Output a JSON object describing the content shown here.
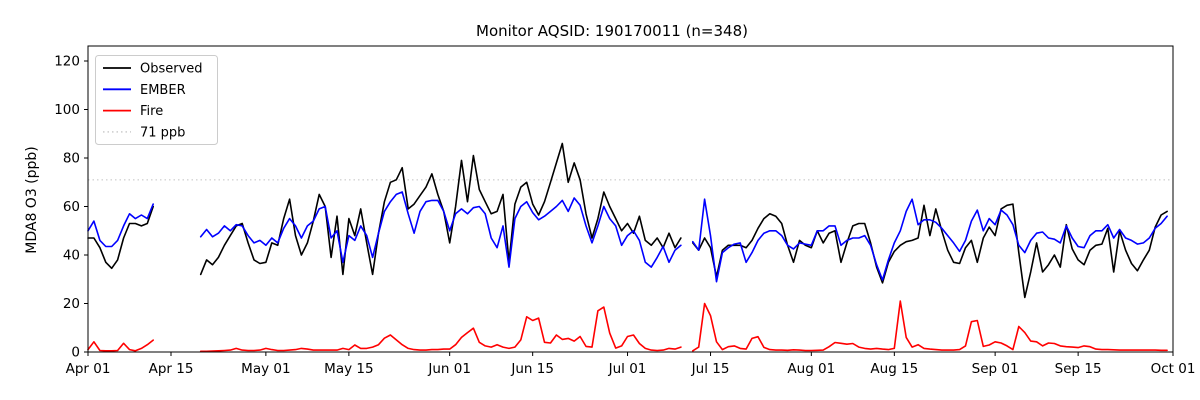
{
  "chart_data": {
    "type": "line",
    "title": "Monitor AQSID: 190170011 (n=348)",
    "ylabel": "MDA8 O3 (ppb)",
    "xlabel": "",
    "ylim": [
      0,
      126
    ],
    "yticks": [
      0,
      20,
      40,
      60,
      80,
      100,
      120
    ],
    "xtick_labels": [
      "Apr 01",
      "Apr 15",
      "May 01",
      "May 15",
      "Jun 01",
      "Jun 15",
      "Jul 01",
      "Jul 15",
      "Aug 01",
      "Aug 15",
      "Sep 01",
      "Sep 15",
      "Oct 01"
    ],
    "xtick_days": [
      0,
      14,
      30,
      44,
      61,
      75,
      91,
      105,
      122,
      136,
      153,
      167,
      183
    ],
    "x_span_days": 183,
    "grid": false,
    "legend_position": "upper-left",
    "threshold": {
      "label": "71 ppb",
      "value": 71,
      "color": "#d3d3d3",
      "style": "dotted"
    },
    "series": [
      {
        "name": "Observed",
        "color": "#000000",
        "segments": [
          {
            "start_day": 0,
            "values": [
              47,
              47,
              43,
              37,
              34.5,
              38,
              47,
              53,
              53,
              52,
              53,
              60
            ]
          },
          {
            "start_day": 19,
            "values": [
              32,
              38,
              36,
              39,
              44,
              48,
              52,
              53,
              45,
              38,
              36.5,
              37,
              45,
              44,
              55,
              63,
              48,
              40,
              45,
              54,
              65,
              60,
              39,
              56,
              32,
              55,
              48,
              59,
              45,
              32,
              49,
              62,
              70,
              71,
              76,
              59,
              61,
              64.5,
              68,
              73.5,
              65,
              58,
              45,
              60,
              79,
              62,
              81,
              67,
              62,
              57,
              58,
              65,
              37,
              61,
              68,
              70,
              61,
              56.5,
              62,
              70,
              78,
              86,
              70,
              78,
              71,
              57,
              47,
              55,
              66,
              60,
              55,
              50,
              53,
              49,
              56,
              46,
              44,
              47,
              43,
              49,
              43,
              47
            ]
          },
          {
            "start_day": 102,
            "values": [
              45,
              42,
              47,
              43,
              31,
              42,
              44,
              44,
              44,
              43,
              46,
              51,
              55,
              57,
              56,
              53,
              44,
              37,
              46,
              44,
              43,
              50,
              45,
              49,
              50,
              37,
              45,
              52,
              53,
              53,
              45,
              35,
              28.5,
              37,
              41.5,
              44,
              45.5,
              46,
              47,
              60.5,
              48,
              59,
              50,
              42,
              37,
              36.5,
              43,
              46,
              37,
              47,
              51.5,
              48,
              59,
              60.5,
              61,
              41,
              22.5,
              33,
              45,
              33,
              36,
              40,
              35,
              52.5,
              42.5,
              38,
              36,
              42,
              44,
              44.5,
              51,
              33,
              50,
              42,
              36.5,
              33.5,
              38,
              42,
              51.5,
              56.5,
              58
            ]
          }
        ]
      },
      {
        "name": "EMBER",
        "color": "#0000ff",
        "segments": [
          {
            "start_day": 0,
            "values": [
              50,
              54,
              46,
              43.5,
              43.5,
              46,
              52,
              57,
              55,
              56.5,
              55,
              61
            ]
          },
          {
            "start_day": 19,
            "values": [
              47.5,
              50.5,
              47.5,
              49,
              52,
              50,
              52.5,
              52,
              48,
              45,
              46,
              44,
              47,
              45,
              51,
              55,
              52,
              47,
              52,
              54,
              59,
              60,
              47,
              50,
              37,
              48,
              46,
              52,
              48,
              39,
              49,
              58,
              62,
              65,
              66,
              57,
              49,
              58,
              62,
              62.5,
              62.5,
              58,
              50,
              57,
              59,
              57,
              59.5,
              60,
              57,
              47,
              43,
              52,
              35,
              55,
              60,
              62,
              57.5,
              54.5,
              56,
              58,
              60,
              62.5,
              58,
              63.5,
              60.5,
              52,
              45,
              52,
              60,
              55,
              52,
              44,
              48,
              50,
              46,
              37,
              35,
              39,
              43.5,
              37,
              42,
              44
            ]
          },
          {
            "start_day": 102,
            "values": [
              45.5,
              42,
              63,
              48,
              29,
              41,
              43,
              44.5,
              45,
              37,
              41,
              46,
              49,
              50,
              50,
              48,
              44,
              42.5,
              45,
              44.5,
              44,
              50,
              50,
              52,
              52,
              44,
              46,
              47,
              47,
              48,
              44,
              36,
              29.7,
              38,
              45,
              50,
              58,
              63,
              52.5,
              54.5,
              54.5,
              53.5,
              51,
              48,
              45,
              41.5,
              46,
              54,
              58.5,
              50,
              55,
              52.5,
              58.5,
              56.5,
              52.5,
              44,
              41,
              46,
              49,
              49.5,
              47,
              46.5,
              45,
              52,
              47,
              43.5,
              43,
              48,
              50,
              50,
              52.5,
              47,
              50.5,
              47,
              46,
              44.5,
              45,
              47,
              51,
              53,
              56
            ]
          }
        ]
      },
      {
        "name": "Fire",
        "color": "#ff0000",
        "segments": [
          {
            "start_day": 0,
            "values": [
              1,
              4.2,
              0.6,
              0.5,
              0.5,
              0.6,
              3.6,
              1,
              0.5,
              1.5,
              3,
              4.9
            ]
          },
          {
            "start_day": 19,
            "values": [
              0.3,
              0.3,
              0.4,
              0.5,
              0.6,
              0.8,
              1.5,
              0.8,
              0.6,
              0.6,
              0.8,
              1.5,
              1,
              0.6,
              0.6,
              0.8,
              1,
              1.5,
              1.2,
              0.8,
              0.8,
              0.8,
              0.8,
              0.8,
              1.5,
              1,
              2.9,
              1.5,
              1.5,
              2,
              3,
              5.7,
              7,
              5,
              3,
              1.5,
              1,
              0.8,
              0.8,
              1,
              1,
              1.2,
              1.2,
              3,
              6,
              8,
              9.8,
              4,
              2.5,
              2,
              3,
              2,
              1.5,
              2,
              5,
              14.5,
              13,
              14,
              4,
              3.7,
              7,
              5.2,
              5.6,
              4.5,
              6.4,
              2.3,
              2,
              17,
              18.5,
              7.8,
              1.6,
              2.5,
              6.4,
              7,
              3.5,
              1.5,
              0.8,
              0.6,
              0.8,
              1.5,
              1.2,
              2
            ]
          },
          {
            "start_day": 102,
            "values": [
              0.5,
              2,
              20,
              15,
              4.2,
              1,
              2.2,
              2.5,
              1.5,
              1.2,
              5.6,
              6.3,
              1.9,
              1,
              0.8,
              0.8,
              0.7,
              0.9,
              0.8,
              0.6,
              0.6,
              0.7,
              0.8,
              2.2,
              3.9,
              3.6,
              3.2,
              3.5,
              2,
              1.5,
              1.2,
              1.5,
              1.2,
              1,
              1.5,
              21,
              6,
              2,
              3,
              1.5,
              1.2,
              1,
              0.8,
              0.8,
              0.8,
              1,
              2.5,
              12.5,
              13,
              2.3,
              2.9,
              4.2,
              3.7,
              2.5,
              1,
              10.5,
              8,
              4.5,
              4.2,
              2.5,
              3.7,
              3.5,
              2.5,
              2.2,
              2,
              1.8,
              2.5,
              2.2,
              1.2,
              1,
              1,
              0.9,
              0.8,
              0.8,
              0.8,
              0.8,
              0.8,
              0.8,
              0.8,
              0.7,
              0.7
            ]
          }
        ]
      }
    ],
    "legend_entries": [
      "Observed",
      "EMBER",
      "Fire",
      "71 ppb"
    ]
  }
}
